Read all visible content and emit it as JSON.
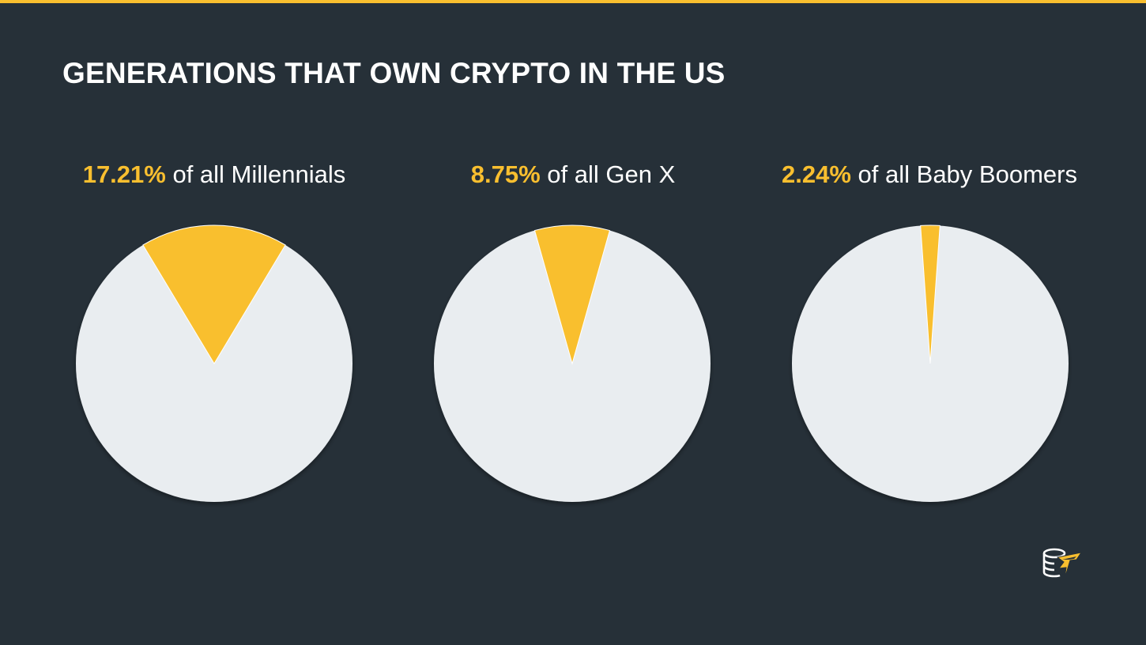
{
  "title": "GENERATIONS THAT OWN CRYPTO IN THE US",
  "colors": {
    "background": "#263038",
    "accent": "#F9BF2F",
    "pie_rest": "#E9EDF0",
    "text": "#FFFFFF"
  },
  "logo": {
    "icon": "coin-stack-lightning-logo-icon"
  },
  "chart_data": [
    {
      "type": "pie",
      "label_value": "17.21%",
      "label_text": " of all Millennials",
      "values": [
        17.21,
        82.79
      ]
    },
    {
      "type": "pie",
      "label_value": "8.75%",
      "label_text": " of all Gen X",
      "values": [
        8.75,
        91.25
      ]
    },
    {
      "type": "pie",
      "label_value": "2.24%",
      "label_text": " of all Baby Boomers",
      "values": [
        2.24,
        97.76
      ]
    }
  ]
}
